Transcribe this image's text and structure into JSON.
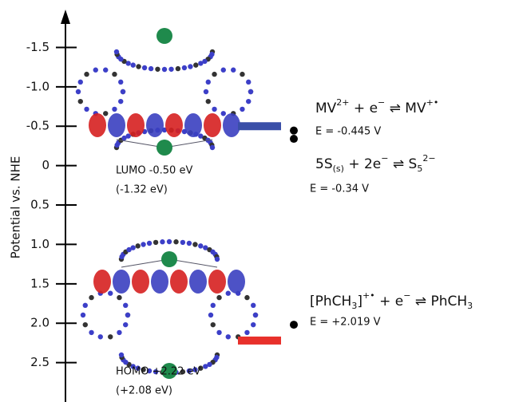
{
  "chart_data": {
    "type": "energy-level",
    "y_label": "Potential vs. NHE",
    "ylim": [
      -1.95,
      3.0
    ],
    "inverted": true,
    "yticks": [
      -1.5,
      -1.0,
      -0.5,
      0,
      0.5,
      1.0,
      1.5,
      2.0,
      2.5
    ],
    "yticks_labels": [
      "-1.5",
      "-1.0",
      "-0.5",
      "0",
      "0.5",
      "1.0",
      "1.5",
      "2.0",
      "2.5"
    ],
    "levels": {
      "values": [
        -0.5,
        2.22
      ],
      "value_labels": [
        "LUMO -0.50 eV",
        "HOMO +2.22 eV"
      ],
      "notes": [
        "(-1.32 eV)",
        "(+2.08 eV)"
      ],
      "colors": [
        "#3a4fa8",
        "#e8302b"
      ]
    },
    "redox": {
      "values": [
        -0.445,
        -0.34,
        2.019
      ],
      "value_labels": [
        "E = -0.445 V",
        "E = -0.34 V",
        "E = +2.019 V"
      ],
      "color": "#000000",
      "equations": [
        [
          {
            "text": "MV"
          },
          {
            "text": "2+",
            "pos": "sup"
          },
          {
            "text": " + e"
          },
          {
            "text": "−",
            "pos": "sup"
          },
          {
            "text": " ⇌ MV"
          },
          {
            "text": "+•",
            "pos": "sup"
          }
        ],
        [
          {
            "text": "5S"
          },
          {
            "text": "(s)",
            "pos": "sub"
          },
          {
            "text": " + 2e"
          },
          {
            "text": "−",
            "pos": "sup"
          },
          {
            "text": " ⇌ S"
          },
          {
            "text": "5",
            "pos": "sub"
          },
          {
            "text": "2−",
            "pos": "sup"
          }
        ],
        [
          {
            "text": "[PhCH"
          },
          {
            "text": "3",
            "pos": "sub"
          },
          {
            "text": "]"
          },
          {
            "text": "+•",
            "pos": "sup"
          },
          {
            "text": " + e"
          },
          {
            "text": "−",
            "pos": "sup"
          },
          {
            "text": " ⇌ PhCH"
          },
          {
            "text": "3",
            "pos": "sub"
          }
        ]
      ]
    }
  }
}
